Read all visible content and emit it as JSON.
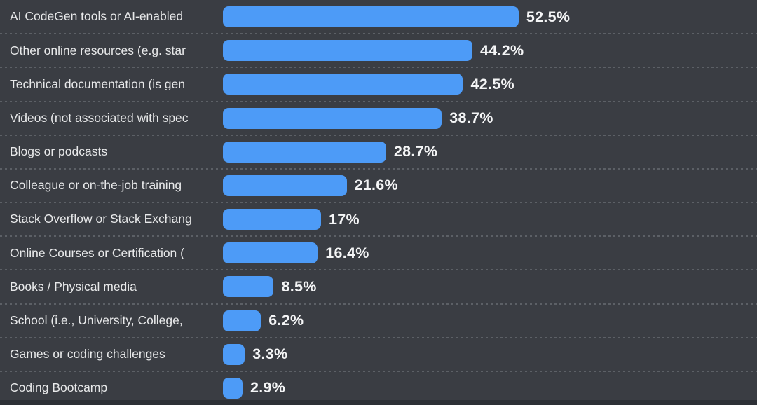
{
  "chart_data": {
    "type": "bar",
    "orientation": "horizontal",
    "title": "",
    "xlabel": "",
    "ylabel": "",
    "xlim": [
      0,
      55
    ],
    "grid": false,
    "legend": false,
    "categories": [
      "AI CodeGen tools or AI-enabled",
      "Other online resources (e.g. star",
      "Technical documentation (is gen",
      "Videos (not associated with spec",
      "Blogs or podcasts",
      "Colleague or on-the-job training",
      "Stack Overflow or Stack Exchang",
      "Online Courses or Certification (",
      "Books / Physical media",
      "School (i.e., University, College,",
      "Games or coding challenges",
      "Coding Bootcamp"
    ],
    "values": [
      52.5,
      44.2,
      42.5,
      38.7,
      28.7,
      21.6,
      17,
      16.4,
      8.5,
      6.2,
      3.3,
      2.9
    ],
    "value_labels": [
      "52.5%",
      "44.2%",
      "42.5%",
      "38.7%",
      "28.7%",
      "21.6%",
      "17%",
      "16.4%",
      "8.5%",
      "6.2%",
      "3.3%",
      "2.9%"
    ],
    "colors": {
      "background": "#3A3D43",
      "bar": "#4D9BF7",
      "category_label": "#E8E9EA",
      "value_label": "#F4F5F6",
      "separator": "#5C6066",
      "bottom_edge": "#2D3036"
    }
  }
}
